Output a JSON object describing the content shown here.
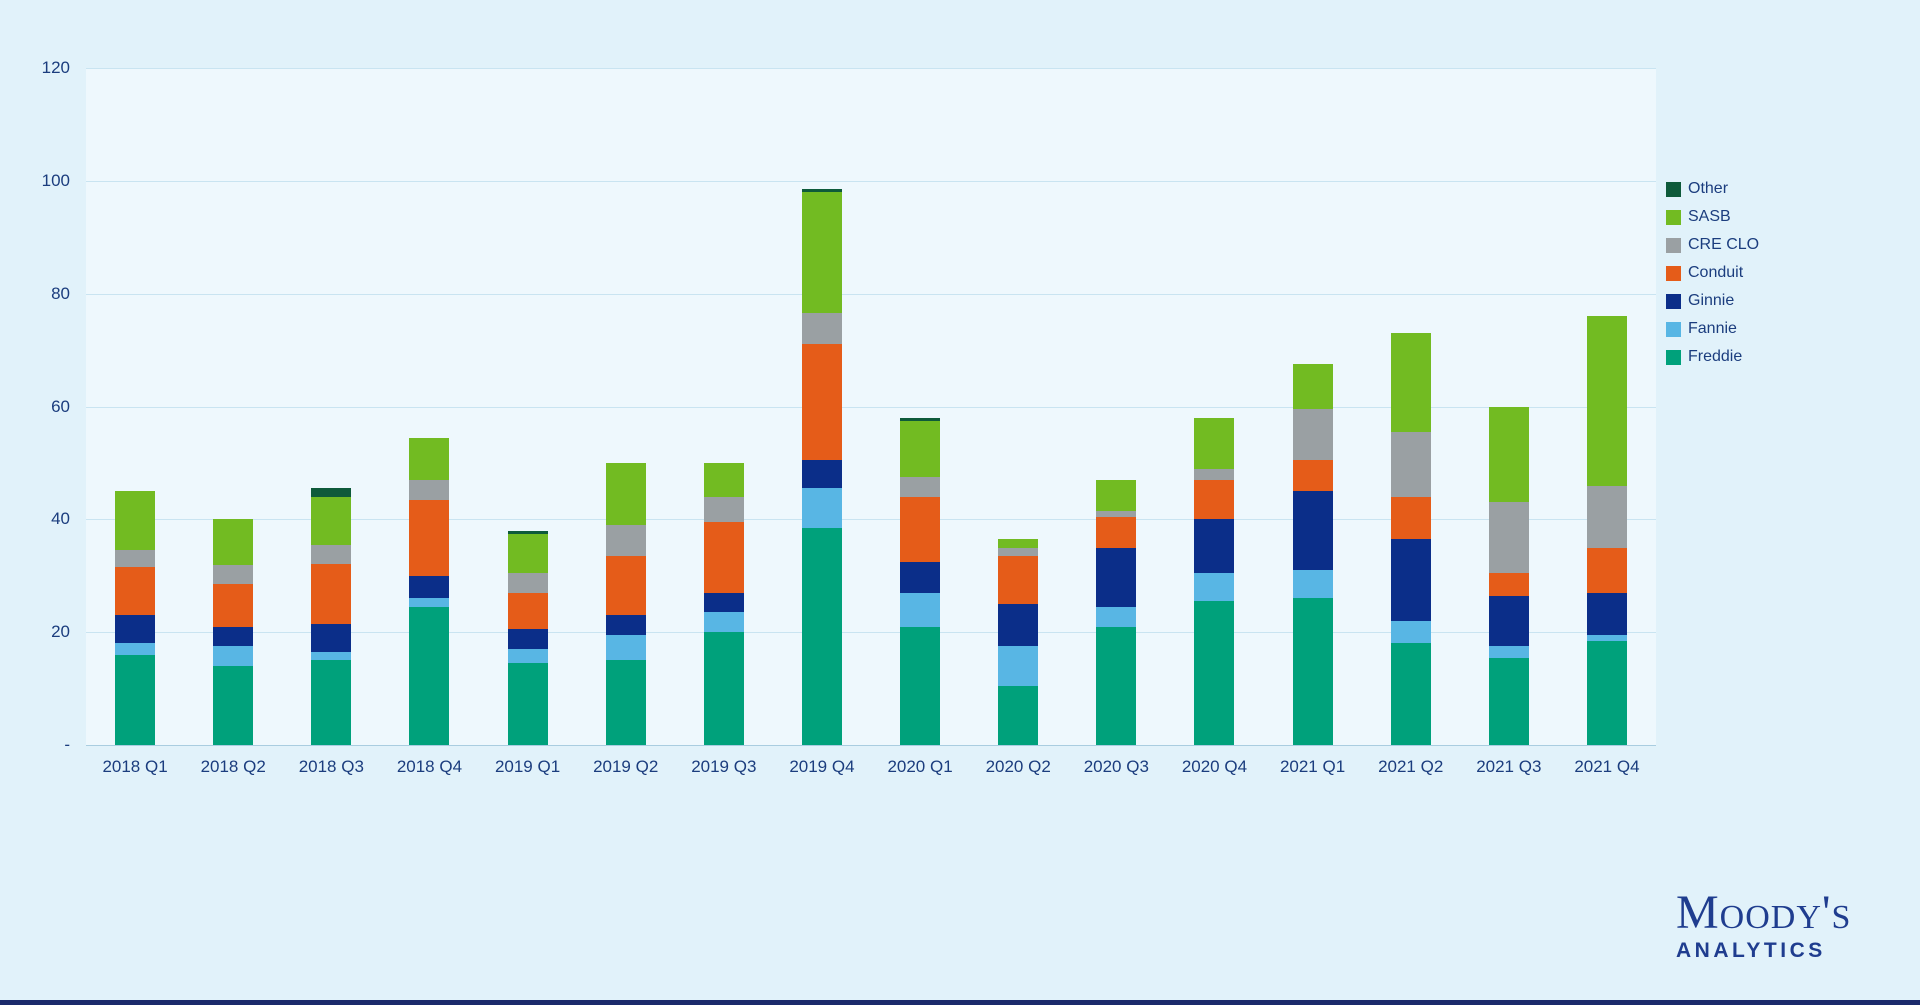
{
  "page": {
    "background": "#e1f2fa"
  },
  "chart_data": {
    "type": "bar",
    "stacked": true,
    "title": "",
    "xlabel": "",
    "ylabel": "",
    "ylim": [
      0,
      120
    ],
    "grid": true,
    "legend_position": "right",
    "categories": [
      "2018 Q1",
      "2018 Q2",
      "2018 Q3",
      "2018 Q4",
      "2019 Q1",
      "2019 Q2",
      "2019 Q3",
      "2019 Q4",
      "2020 Q1",
      "2020 Q2",
      "2020 Q3",
      "2020 Q4",
      "2021 Q1",
      "2021 Q2",
      "2021 Q3",
      "2021 Q4"
    ],
    "series": [
      {
        "name": "Freddie",
        "values": [
          16,
          14,
          15,
          24.5,
          14.5,
          15,
          20,
          38.5,
          21,
          10.5,
          21,
          25.5,
          26,
          18,
          15.5,
          18.5
        ]
      },
      {
        "name": "Fannie",
        "values": [
          2,
          3.5,
          1.5,
          1.5,
          2.5,
          4.5,
          3.5,
          7,
          6,
          7,
          3.5,
          5,
          5,
          4,
          2,
          1
        ]
      },
      {
        "name": "Ginnie",
        "values": [
          5,
          3.5,
          5,
          4,
          3.5,
          3.5,
          3.5,
          5,
          5.5,
          7.5,
          10.5,
          9.5,
          14,
          14.5,
          9,
          7.5
        ]
      },
      {
        "name": "Conduit",
        "values": [
          8.5,
          7.5,
          10.5,
          13.5,
          6.5,
          10.5,
          12.5,
          20.5,
          11.5,
          8.5,
          5.5,
          7,
          5.5,
          7.5,
          4,
          8
        ]
      },
      {
        "name": "CRE CLO",
        "values": [
          3,
          3.5,
          3.5,
          3.5,
          3.5,
          5.5,
          4.5,
          5.5,
          3.5,
          1.5,
          1,
          2,
          9,
          11.5,
          12.5,
          11
        ]
      },
      {
        "name": "SASB",
        "values": [
          10.5,
          8,
          8.5,
          7.5,
          7,
          11,
          6,
          21.5,
          10,
          1.5,
          5.5,
          9,
          8,
          17.5,
          17,
          30
        ]
      },
      {
        "name": "Other",
        "values": [
          0,
          0,
          1.5,
          0,
          0.5,
          0,
          0,
          0.5,
          0.5,
          0,
          0,
          0,
          0,
          0,
          0,
          0
        ]
      }
    ],
    "colors": {
      "Other": "#0e5a3a",
      "SASB": "#72bb22",
      "CRE CLO": "#9aa0a3",
      "Conduit": "#e55c19",
      "Ginnie": "#0b2e89",
      "Fannie": "#58b6e4",
      "Freddie": "#00a17b"
    },
    "yticks": [
      {
        "value": 120,
        "label": "120"
      },
      {
        "value": 100,
        "label": "100"
      },
      {
        "value": 80,
        "label": "80"
      },
      {
        "value": 60,
        "label": "60"
      },
      {
        "value": 40,
        "label": "40"
      },
      {
        "value": 20,
        "label": "20"
      },
      {
        "value": 0,
        "label": "-"
      }
    ],
    "legend": [
      "Other",
      "SASB",
      "CRE CLO",
      "Conduit",
      "Ginnie",
      "Fannie",
      "Freddie"
    ]
  },
  "logo": {
    "brand": "Moody's",
    "sub": "ANALYTICS"
  }
}
